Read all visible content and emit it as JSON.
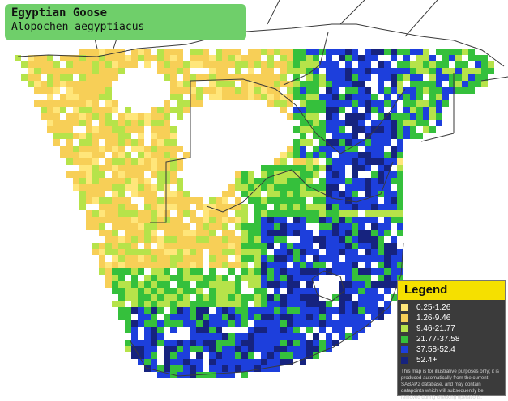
{
  "title": {
    "common_name": "Egyptian Goose",
    "scientific_name": "Alopochen aegyptiacus"
  },
  "legend": {
    "heading": "Legend",
    "classes": [
      {
        "label": "0.25-1.26",
        "color": "#ffe67a"
      },
      {
        "label": "1.26-9.46",
        "color": "#f7cf57"
      },
      {
        "label": "9.46-21.77",
        "color": "#b6e34a"
      },
      {
        "label": "21.77-37.58",
        "color": "#35c03c"
      },
      {
        "label": "37.58-52.4",
        "color": "#1d3fdc"
      },
      {
        "label": "52.4+",
        "color": "#16237f"
      }
    ],
    "disclaimer": "This map is for illustrative purposes only; it is produced automatically from the current SABAP2 database, and may contain datapoints which will subsequently be removed during checking operations."
  },
  "map_colors": {
    "land": "#ffffff",
    "border": "#3a3a3a"
  }
}
